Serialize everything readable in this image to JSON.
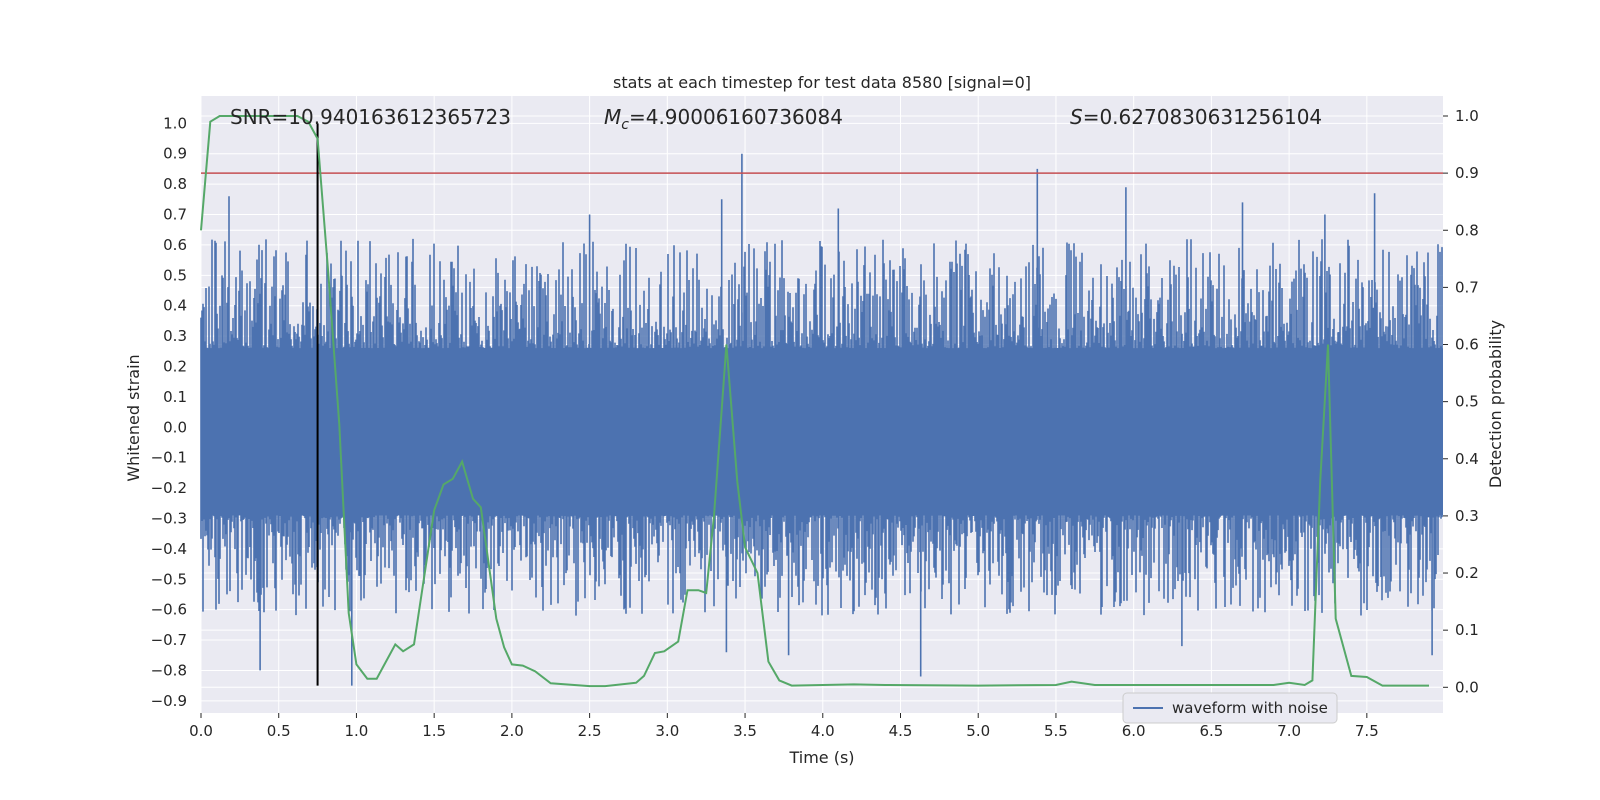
{
  "colors": {
    "background": "#eaeaf2",
    "grid": "#ffffff",
    "waveform": "#4c72b0",
    "probability": "#55a868",
    "threshold": "#c44e52",
    "marker": "#000000",
    "text": "#262626"
  },
  "chart_data": {
    "type": "line",
    "title": "stats at each timestep for test data 8580 [signal=0]",
    "xlabel": "Time (s)",
    "ylabel": "Whitened strain",
    "ylabel_right": "Detection probability",
    "xlim": [
      0.0,
      7.99
    ],
    "ylim": [
      -0.94,
      1.09
    ],
    "ylim_right": [
      -0.045,
      1.035
    ],
    "x_ticks": [
      0.0,
      0.5,
      1.0,
      1.5,
      2.0,
      2.5,
      3.0,
      3.5,
      4.0,
      4.5,
      5.0,
      5.5,
      6.0,
      6.5,
      7.0,
      7.5
    ],
    "x_tick_labels": [
      "0.0",
      "0.5",
      "1.0",
      "1.5",
      "2.0",
      "2.5",
      "3.0",
      "3.5",
      "4.0",
      "4.5",
      "5.0",
      "5.5",
      "6.0",
      "6.5",
      "7.0",
      "7.5"
    ],
    "y_ticks": [
      1.0,
      0.9,
      0.8,
      0.7,
      0.6,
      0.5,
      0.4,
      0.3,
      0.2,
      0.1,
      0.0,
      -0.1,
      -0.2,
      -0.3,
      -0.4,
      -0.5,
      -0.6,
      -0.7,
      -0.8,
      -0.9
    ],
    "y_tick_labels": [
      "1.0",
      "0.9",
      "0.8",
      "0.7",
      "0.6",
      "0.5",
      "0.4",
      "0.3",
      "0.2",
      "0.1",
      "0.0",
      "−0.1",
      "−0.2",
      "−0.3",
      "−0.4",
      "−0.5",
      "−0.6",
      "−0.7",
      "−0.8",
      "−0.9"
    ],
    "y_ticks_right": [
      1.0,
      0.9,
      0.8,
      0.7,
      0.6,
      0.5,
      0.4,
      0.3,
      0.2,
      0.1,
      0.0
    ],
    "y_tick_labels_right": [
      "1.0",
      "0.9",
      "0.8",
      "0.7",
      "0.6",
      "0.5",
      "0.4",
      "0.3",
      "0.2",
      "0.1",
      "0.0"
    ],
    "grid": true,
    "annotations": {
      "snr": "SNR=10.940163612365723",
      "mc_symbol": "M",
      "mc_sub": "c",
      "mc_value": "=4.90006160736084",
      "s_symbol": "S",
      "s_value": "=0.6270830631256104"
    },
    "threshold_right": 0.9,
    "marker_x": 0.75,
    "marker_y_range": [
      -0.85,
      1.0
    ],
    "legend": {
      "position": "lower-right",
      "entries": [
        "waveform with noise"
      ]
    },
    "series": [
      {
        "name": "waveform with noise",
        "kind": "noise-band",
        "dense_band": [
          -0.29,
          0.26
        ],
        "envelope": [
          -0.62,
          0.62
        ],
        "peaks": [
          {
            "x": 0.38,
            "y": -0.8
          },
          {
            "x": 0.75,
            "y": 1.0
          },
          {
            "x": 0.97,
            "y": -0.85
          },
          {
            "x": 3.48,
            "y": 0.9
          },
          {
            "x": 3.38,
            "y": -0.74
          },
          {
            "x": 3.78,
            "y": -0.75
          },
          {
            "x": 4.63,
            "y": -0.82
          },
          {
            "x": 5.38,
            "y": 0.85
          },
          {
            "x": 5.95,
            "y": 0.79
          },
          {
            "x": 6.31,
            "y": -0.72
          },
          {
            "x": 7.55,
            "y": 0.77
          },
          {
            "x": 7.92,
            "y": -0.75
          },
          {
            "x": 0.18,
            "y": 0.76
          },
          {
            "x": 2.5,
            "y": 0.7
          },
          {
            "x": 3.35,
            "y": 0.75
          },
          {
            "x": 4.1,
            "y": 0.72
          },
          {
            "x": 6.7,
            "y": 0.74
          },
          {
            "x": 7.23,
            "y": 0.7
          }
        ]
      },
      {
        "name": "",
        "axis": "right",
        "x": [
          0.0,
          0.06,
          0.12,
          0.62,
          0.69,
          0.75,
          0.82,
          0.89,
          0.95,
          1.0,
          1.07,
          1.13,
          1.25,
          1.3,
          1.37,
          1.5,
          1.56,
          1.62,
          1.68,
          1.75,
          1.8,
          1.9,
          1.95,
          2.0,
          2.07,
          2.15,
          2.25,
          2.5,
          2.6,
          2.8,
          2.85,
          2.92,
          2.98,
          3.07,
          3.13,
          3.2,
          3.25,
          3.3,
          3.38,
          3.45,
          3.5,
          3.58,
          3.65,
          3.72,
          3.8,
          4.2,
          4.4,
          5.0,
          5.5,
          5.6,
          5.75,
          6.5,
          6.9,
          7.0,
          7.1,
          7.15,
          7.2,
          7.25,
          7.3,
          7.4,
          7.5,
          7.6,
          7.9
        ],
        "values": [
          0.8,
          0.99,
          1.0,
          1.0,
          0.99,
          0.96,
          0.72,
          0.46,
          0.13,
          0.04,
          0.015,
          0.015,
          0.075,
          0.063,
          0.075,
          0.31,
          0.355,
          0.365,
          0.395,
          0.33,
          0.315,
          0.12,
          0.07,
          0.04,
          0.038,
          0.028,
          0.007,
          0.002,
          0.002,
          0.008,
          0.02,
          0.06,
          0.063,
          0.08,
          0.17,
          0.17,
          0.165,
          0.3,
          0.6,
          0.36,
          0.245,
          0.2,
          0.045,
          0.012,
          0.003,
          0.005,
          0.004,
          0.003,
          0.004,
          0.01,
          0.004,
          0.004,
          0.004,
          0.008,
          0.004,
          0.012,
          0.36,
          0.6,
          0.12,
          0.02,
          0.018,
          0.003,
          0.003
        ]
      }
    ]
  }
}
